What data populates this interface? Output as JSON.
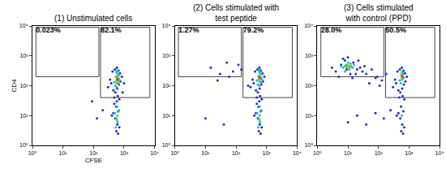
{
  "chart_data": [
    {
      "type": "scatter",
      "title": "(1) Unstimulated cells",
      "x_label": "CFSE",
      "y_label": "CD4",
      "log": true,
      "xlim": [
        1,
        10000
      ],
      "ylim": [
        1,
        10000
      ],
      "xticks": [
        {
          "value": 1,
          "label": "10⁰"
        },
        {
          "value": 10,
          "label": "10¹"
        },
        {
          "value": 100,
          "label": "10²"
        },
        {
          "value": 1000,
          "label": "10³"
        },
        {
          "value": 10000,
          "label": "10⁴"
        }
      ],
      "yticks": [
        {
          "value": 1,
          "label": "10⁰"
        },
        {
          "value": 10,
          "label": "10¹"
        },
        {
          "value": 100,
          "label": "10²"
        },
        {
          "value": 1000,
          "label": "10³"
        },
        {
          "value": 10000,
          "label": "10⁴"
        }
      ],
      "gates": [
        {
          "x": [
            1.3,
            150
          ],
          "y": [
            200,
            9000
          ],
          "label": "0.023%",
          "value": 0.023
        },
        {
          "x": [
            170,
            7000
          ],
          "y": [
            40,
            9000
          ],
          "label": "82.1%",
          "value": 82.1
        }
      ],
      "series": [
        {
          "color": "#1f2fd0",
          "x": [
            300,
            380,
            450,
            520,
            600,
            680,
            760,
            850,
            420,
            500,
            580,
            660,
            740,
            350,
            480,
            620,
            700,
            550,
            450,
            650,
            520,
            600,
            700,
            400,
            560,
            640,
            480,
            580,
            200,
            130,
            90,
            900,
            1000
          ],
          "y": [
            90,
            120,
            70,
            60,
            80,
            110,
            140,
            200,
            300,
            350,
            400,
            320,
            260,
            160,
            40,
            45,
            35,
            20,
            12,
            14,
            8,
            5,
            4,
            10,
            3,
            2.5,
            25,
            30,
            15,
            8,
            30,
            60,
            120
          ]
        },
        {
          "color": "#18b8e0",
          "x": [
            480,
            540,
            600,
            660,
            720,
            520,
            580,
            640,
            700,
            560,
            620,
            500,
            560,
            620,
            680,
            540,
            600
          ],
          "y": [
            130,
            200,
            260,
            180,
            150,
            100,
            90,
            120,
            230,
            300,
            330,
            12,
            8,
            6,
            15,
            4,
            20
          ]
        },
        {
          "color": "#40d040",
          "x": [
            560,
            600,
            640,
            580,
            620,
            600,
            590,
            620
          ],
          "y": [
            150,
            190,
            160,
            120,
            220,
            10,
            7,
            14
          ]
        },
        {
          "color": "#ff9900",
          "x": [
            590,
            610,
            600,
            620
          ],
          "y": [
            160,
            175,
            140,
            190
          ]
        },
        {
          "color": "#ff2000",
          "x": [
            600
          ],
          "y": [
            165
          ]
        }
      ]
    },
    {
      "type": "scatter",
      "title": "(2) Cells stimulated with\ntest peptide",
      "log": true,
      "xlim": [
        1,
        10000
      ],
      "ylim": [
        1,
        10000
      ],
      "xticks": [
        {
          "value": 1,
          "label": "10⁰"
        },
        {
          "value": 10,
          "label": "10¹"
        },
        {
          "value": 100,
          "label": "10²"
        },
        {
          "value": 1000,
          "label": "10³"
        },
        {
          "value": 10000,
          "label": "10⁴"
        }
      ],
      "yticks": [
        {
          "value": 1,
          "label": "10⁰"
        },
        {
          "value": 10,
          "label": "10¹"
        },
        {
          "value": 100,
          "label": "10²"
        },
        {
          "value": 1000,
          "label": "10³"
        },
        {
          "value": 10000,
          "label": "10⁴"
        }
      ],
      "gates": [
        {
          "x": [
            1.3,
            150
          ],
          "y": [
            200,
            9000
          ],
          "label": "1.27%",
          "value": 1.27
        },
        {
          "x": [
            170,
            7000
          ],
          "y": [
            40,
            9000
          ],
          "label": "79.2%",
          "value": 79.2
        }
      ],
      "series": [
        {
          "color": "#1f2fd0",
          "x": [
            300,
            380,
            450,
            520,
            600,
            680,
            760,
            850,
            420,
            500,
            580,
            660,
            740,
            350,
            480,
            620,
            700,
            550,
            450,
            650,
            520,
            600,
            700,
            400,
            560,
            640,
            480,
            580,
            15,
            30,
            50,
            80,
            120,
            25,
            60,
            150,
            10,
            40,
            250
          ],
          "y": [
            90,
            120,
            70,
            60,
            80,
            110,
            140,
            200,
            300,
            350,
            400,
            320,
            260,
            160,
            40,
            45,
            35,
            20,
            12,
            14,
            8,
            5,
            4,
            10,
            3,
            2.5,
            25,
            30,
            400,
            250,
            600,
            300,
            500,
            150,
            200,
            350,
            8,
            5,
            100
          ]
        },
        {
          "color": "#18b8e0",
          "x": [
            480,
            540,
            600,
            660,
            720,
            520,
            580,
            640,
            700,
            560,
            620,
            500,
            560,
            620,
            680,
            540,
            600
          ],
          "y": [
            150,
            210,
            280,
            190,
            160,
            110,
            100,
            130,
            240,
            320,
            350,
            12,
            8,
            6,
            15,
            4,
            20
          ]
        },
        {
          "color": "#40d040",
          "x": [
            560,
            600,
            640,
            580,
            620,
            600,
            590
          ],
          "y": [
            170,
            200,
            180,
            140,
            240,
            10,
            7
          ]
        },
        {
          "color": "#ff9900",
          "x": [
            590,
            610,
            600
          ],
          "y": [
            180,
            200,
            160
          ]
        },
        {
          "color": "#ff2000",
          "x": [
            600
          ],
          "y": [
            185
          ]
        }
      ]
    },
    {
      "type": "scatter",
      "title": "(3) Cells stimulated\nwith control (PPD)",
      "log": true,
      "xlim": [
        1,
        10000
      ],
      "ylim": [
        1,
        10000
      ],
      "xticks": [
        {
          "value": 1,
          "label": "10⁰"
        },
        {
          "value": 10,
          "label": "10¹"
        },
        {
          "value": 100,
          "label": "10²"
        },
        {
          "value": 1000,
          "label": "10³"
        },
        {
          "value": 10000,
          "label": "10⁴"
        }
      ],
      "yticks": [
        {
          "value": 1,
          "label": "10⁰"
        },
        {
          "value": 10,
          "label": "10¹"
        },
        {
          "value": 100,
          "label": "10²"
        },
        {
          "value": 1000,
          "label": "10³"
        },
        {
          "value": 10000,
          "label": "10⁴"
        }
      ],
      "gates": [
        {
          "x": [
            1.3,
            150
          ],
          "y": [
            200,
            9000
          ],
          "label": "28.0%",
          "value": 28.0
        },
        {
          "x": [
            170,
            7000
          ],
          "y": [
            40,
            9000
          ],
          "label": "50.5%",
          "value": 50.5
        }
      ],
      "series": [
        {
          "color": "#1f2fd0",
          "x": [
            4,
            6,
            8,
            12,
            15,
            20,
            25,
            5,
            7,
            10,
            14,
            18,
            30,
            40,
            60,
            90,
            130,
            180,
            50,
            80,
            110,
            3,
            9,
            22,
            35,
            300,
            380,
            450,
            520,
            600,
            680,
            760,
            850,
            420,
            500,
            580,
            660,
            740,
            350,
            480,
            620,
            700,
            550,
            450,
            650,
            520,
            600,
            700,
            400,
            560,
            640,
            10,
            20,
            40,
            80,
            150,
            250
          ],
          "y": [
            300,
            500,
            700,
            250,
            600,
            350,
            400,
            200,
            800,
            900,
            180,
            250,
            300,
            250,
            350,
            200,
            150,
            250,
            120,
            180,
            100,
            400,
            350,
            700,
            450,
            90,
            120,
            70,
            60,
            80,
            110,
            140,
            200,
            300,
            350,
            400,
            320,
            260,
            160,
            40,
            45,
            35,
            20,
            12,
            14,
            8,
            5,
            4,
            10,
            3,
            2.5,
            6,
            10,
            5,
            12,
            8,
            15
          ]
        },
        {
          "color": "#18b8e0",
          "x": [
            7,
            9,
            11,
            13,
            8,
            10,
            12,
            6,
            14,
            16,
            500,
            560,
            620,
            680,
            540,
            600,
            640,
            580
          ],
          "y": [
            400,
            500,
            350,
            450,
            300,
            600,
            550,
            450,
            400,
            500,
            150,
            220,
            280,
            180,
            120,
            300,
            250,
            10
          ]
        },
        {
          "color": "#40d040",
          "x": [
            9,
            10,
            11,
            12,
            8,
            580,
            620,
            600,
            560
          ],
          "y": [
            420,
            480,
            380,
            440,
            460,
            180,
            220,
            160,
            250
          ]
        },
        {
          "color": "#ff9900",
          "x": [
            10,
            11,
            600,
            610,
            590
          ],
          "y": [
            440,
            410,
            200,
            190,
            230
          ]
        },
        {
          "color": "#ff2000",
          "x": [
            605
          ],
          "y": [
            205
          ]
        }
      ]
    }
  ]
}
